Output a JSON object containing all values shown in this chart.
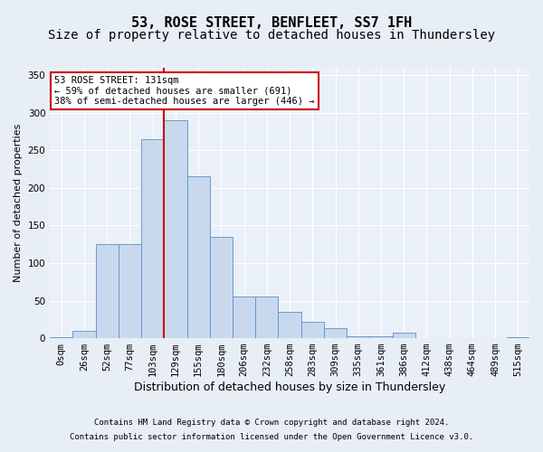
{
  "title1": "53, ROSE STREET, BENFLEET, SS7 1FH",
  "title2": "Size of property relative to detached houses in Thundersley",
  "xlabel": "Distribution of detached houses by size in Thundersley",
  "ylabel": "Number of detached properties",
  "footnote1": "Contains HM Land Registry data © Crown copyright and database right 2024.",
  "footnote2": "Contains public sector information licensed under the Open Government Licence v3.0.",
  "bins": [
    "0sqm",
    "26sqm",
    "52sqm",
    "77sqm",
    "103sqm",
    "129sqm",
    "155sqm",
    "180sqm",
    "206sqm",
    "232sqm",
    "258sqm",
    "283sqm",
    "309sqm",
    "335sqm",
    "361sqm",
    "386sqm",
    "412sqm",
    "438sqm",
    "464sqm",
    "489sqm",
    "515sqm"
  ],
  "bar_heights": [
    1,
    10,
    125,
    125,
    265,
    290,
    215,
    135,
    55,
    55,
    35,
    22,
    13,
    2,
    2,
    7,
    0,
    0,
    0,
    0,
    1
  ],
  "bar_color": "#c8d9ed",
  "bar_edge_color": "#5b8fc4",
  "vline_x": 4.5,
  "vline_color": "#cc0000",
  "annotation_text": "53 ROSE STREET: 131sqm\n← 59% of detached houses are smaller (691)\n38% of semi-detached houses are larger (446) →",
  "annotation_box_color": "#ffffff",
  "annotation_box_edge": "#cc0000",
  "ylim": [
    0,
    360
  ],
  "yticks": [
    0,
    50,
    100,
    150,
    200,
    250,
    300,
    350
  ],
  "background_color": "#e8eef5",
  "plot_bg_color": "#eaf0f8",
  "grid_color": "#ffffff",
  "title_fontsize": 11,
  "subtitle_fontsize": 10,
  "xlabel_fontsize": 9,
  "ylabel_fontsize": 8,
  "tick_fontsize": 7.5,
  "annot_fontsize": 7.5,
  "footnote_fontsize": 6.5
}
